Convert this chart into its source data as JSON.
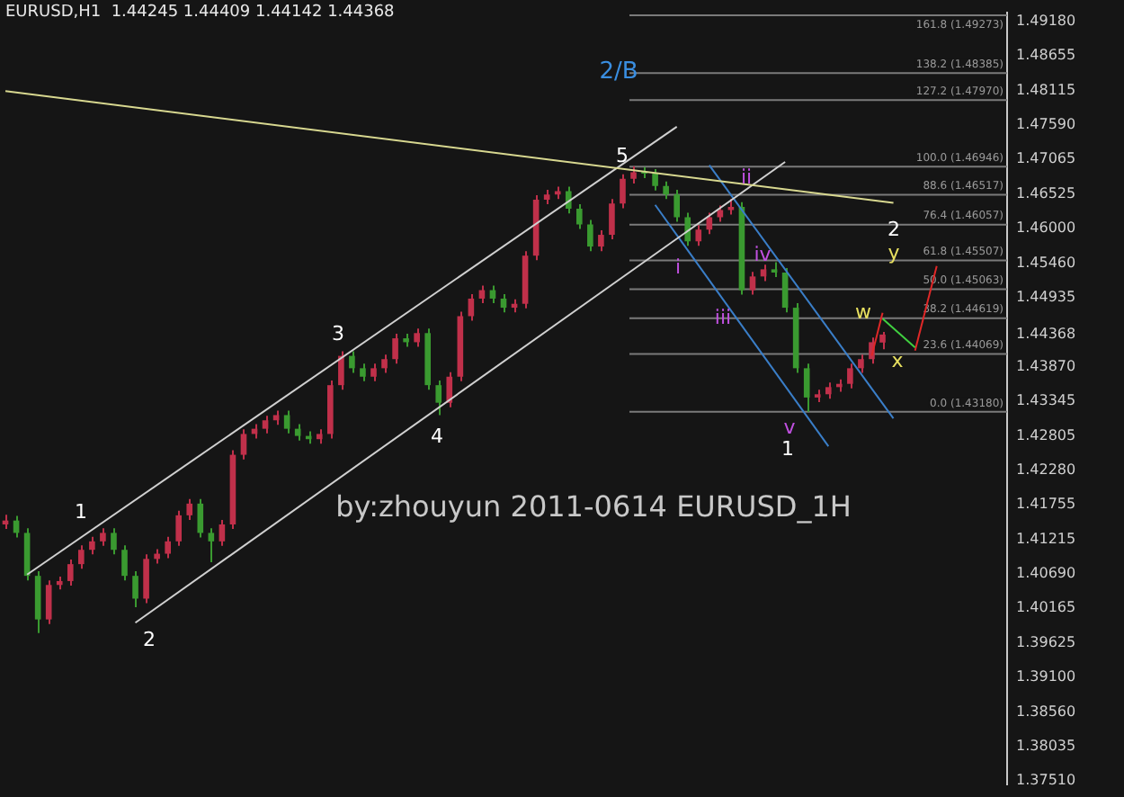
{
  "chart_data": {
    "type": "candlestick",
    "title": "EURUSD,H1  1.44245 1.44409 1.44142 1.44368",
    "categories": [
      null,
      null,
      null,
      null,
      null,
      null,
      null,
      null,
      null,
      null,
      null,
      null,
      null,
      null,
      null,
      null,
      null,
      null,
      null,
      null,
      null,
      null,
      null,
      null,
      null,
      null,
      null,
      null,
      null,
      null,
      null,
      null,
      null,
      null,
      null,
      null,
      null,
      null,
      null,
      null,
      null,
      null,
      null,
      null,
      null,
      null,
      null,
      null,
      null,
      null,
      null,
      null,
      null,
      null,
      null,
      null,
      null,
      null,
      null,
      null,
      null,
      null,
      null,
      null,
      null,
      null,
      null,
      null,
      null,
      null,
      null,
      null,
      null,
      null,
      null,
      null,
      null,
      null,
      null,
      null,
      null,
      null,
      null,
      null,
      null,
      null,
      null,
      null,
      null,
      null,
      null,
      null,
      null
    ],
    "ohlc": [
      [
        1.4145,
        1.416,
        1.4138,
        1.4151
      ],
      [
        1.4151,
        1.4158,
        1.4125,
        1.4132
      ],
      [
        1.4132,
        1.4139,
        1.4059,
        1.4066
      ],
      [
        1.4066,
        1.4073,
        1.3978,
        1.3999
      ],
      [
        1.3999,
        1.4059,
        1.3992,
        1.4052
      ],
      [
        1.4052,
        1.4065,
        1.4045,
        1.4058
      ],
      [
        1.4058,
        1.4091,
        1.4051,
        1.4084
      ],
      [
        1.4084,
        1.4113,
        1.4077,
        1.4106
      ],
      [
        1.4106,
        1.4126,
        1.4099,
        1.4119
      ],
      [
        1.4119,
        1.4139,
        1.4112,
        1.4132
      ],
      [
        1.4132,
        1.4139,
        1.4099,
        1.4106
      ],
      [
        1.4106,
        1.4113,
        1.4059,
        1.4066
      ],
      [
        1.4066,
        1.4073,
        1.4018,
        1.4031
      ],
      [
        1.4031,
        1.4099,
        1.4024,
        1.4092
      ],
      [
        1.4092,
        1.4107,
        1.4085,
        1.41
      ],
      [
        1.41,
        1.4126,
        1.4093,
        1.4119
      ],
      [
        1.4119,
        1.4166,
        1.4112,
        1.4159
      ],
      [
        1.4159,
        1.4184,
        1.4152,
        1.4177
      ],
      [
        1.4177,
        1.4184,
        1.4125,
        1.4132
      ],
      [
        1.4132,
        1.4139,
        1.4087,
        1.4119
      ],
      [
        1.4119,
        1.4152,
        1.4112,
        1.4145
      ],
      [
        1.4145,
        1.4259,
        1.4138,
        1.4252
      ],
      [
        1.4252,
        1.4291,
        1.4245,
        1.4284
      ],
      [
        1.4284,
        1.4299,
        1.4277,
        1.4292
      ],
      [
        1.4292,
        1.4312,
        1.4285,
        1.4305
      ],
      [
        1.4305,
        1.432,
        1.4298,
        1.4313
      ],
      [
        1.4313,
        1.432,
        1.4285,
        1.4292
      ],
      [
        1.4292,
        1.4299,
        1.4274,
        1.4281
      ],
      [
        1.4281,
        1.4288,
        1.4269,
        1.4276
      ],
      [
        1.4276,
        1.4291,
        1.4269,
        1.4284
      ],
      [
        1.4284,
        1.4366,
        1.4277,
        1.4359
      ],
      [
        1.4359,
        1.4411,
        1.4352,
        1.4404
      ],
      [
        1.4404,
        1.4411,
        1.4378,
        1.4385
      ],
      [
        1.4385,
        1.4392,
        1.4365,
        1.4372
      ],
      [
        1.4372,
        1.4392,
        1.4365,
        1.4385
      ],
      [
        1.4385,
        1.4406,
        1.4378,
        1.4399
      ],
      [
        1.4399,
        1.4438,
        1.4392,
        1.4431
      ],
      [
        1.4431,
        1.4438,
        1.4418,
        1.4425
      ],
      [
        1.4425,
        1.4446,
        1.4418,
        1.4439
      ],
      [
        1.4439,
        1.4446,
        1.4352,
        1.4359
      ],
      [
        1.4359,
        1.4366,
        1.4313,
        1.4332
      ],
      [
        1.4332,
        1.4379,
        1.4325,
        1.4372
      ],
      [
        1.4372,
        1.4472,
        1.4365,
        1.4465
      ],
      [
        1.4465,
        1.4499,
        1.4458,
        1.4492
      ],
      [
        1.4492,
        1.4512,
        1.4485,
        1.4505
      ],
      [
        1.4505,
        1.4512,
        1.4485,
        1.4492
      ],
      [
        1.4492,
        1.4499,
        1.4471,
        1.4478
      ],
      [
        1.4478,
        1.4491,
        1.4471,
        1.4484
      ],
      [
        1.4484,
        1.4565,
        1.4477,
        1.4558
      ],
      [
        1.4558,
        1.4651,
        1.4551,
        1.4644
      ],
      [
        1.4644,
        1.4659,
        1.4637,
        1.4652
      ],
      [
        1.4652,
        1.4664,
        1.4645,
        1.4657
      ],
      [
        1.4657,
        1.4664,
        1.4623,
        1.463
      ],
      [
        1.463,
        1.4637,
        1.4599,
        1.4606
      ],
      [
        1.4606,
        1.4613,
        1.4565,
        1.4572
      ],
      [
        1.4572,
        1.4597,
        1.4565,
        1.459
      ],
      [
        1.459,
        1.4645,
        1.4583,
        1.4638
      ],
      [
        1.4638,
        1.4683,
        1.4631,
        1.4676
      ],
      [
        1.4676,
        1.4695,
        1.4669,
        1.4686
      ],
      [
        1.4686,
        1.4694,
        1.4677,
        1.4684
      ],
      [
        1.4684,
        1.4691,
        1.4658,
        1.4665
      ],
      [
        1.4665,
        1.4672,
        1.4645,
        1.4652
      ],
      [
        1.4652,
        1.4659,
        1.461,
        1.4617
      ],
      [
        1.4617,
        1.4624,
        1.4573,
        1.458
      ],
      [
        1.458,
        1.4605,
        1.4573,
        1.4598
      ],
      [
        1.4598,
        1.4624,
        1.4591,
        1.4617
      ],
      [
        1.4617,
        1.4635,
        1.461,
        1.4628
      ],
      [
        1.4628,
        1.4645,
        1.4621,
        1.4633
      ],
      [
        1.4633,
        1.464,
        1.4498,
        1.4505
      ],
      [
        1.4505,
        1.4533,
        1.4498,
        1.4526
      ],
      [
        1.4526,
        1.4544,
        1.4519,
        1.4537
      ],
      [
        1.4537,
        1.4548,
        1.4525,
        1.4532
      ],
      [
        1.4532,
        1.4539,
        1.4471,
        1.4478
      ],
      [
        1.4478,
        1.4485,
        1.4378,
        1.4385
      ],
      [
        1.4385,
        1.4392,
        1.4318,
        1.434
      ],
      [
        1.434,
        1.4352,
        1.4333,
        1.4345
      ],
      [
        1.4345,
        1.4363,
        1.4338,
        1.4356
      ],
      [
        1.4356,
        1.4368,
        1.4349,
        1.4361
      ],
      [
        1.4361,
        1.4392,
        1.4354,
        1.4385
      ],
      [
        1.4385,
        1.4406,
        1.4378,
        1.4399
      ],
      [
        1.4399,
        1.4432,
        1.4392,
        1.4425
      ],
      [
        1.44245,
        1.44409,
        1.44142,
        1.44368
      ],
      null,
      null,
      null,
      null,
      null,
      null,
      null,
      null,
      null,
      null,
      null
    ],
    "colors": [
      "#c0304a",
      "#3a9a30",
      "#3a9a30",
      "#3a9a30",
      "#c0304a",
      "#c0304a",
      "#c0304a",
      "#c0304a",
      "#c0304a",
      "#c0304a",
      "#3a9a30",
      "#3a9a30",
      "#3a9a30",
      "#c0304a",
      "#c0304a",
      "#c0304a",
      "#c0304a",
      "#c0304a",
      "#3a9a30",
      "#3a9a30",
      "#c0304a",
      "#c0304a",
      "#c0304a",
      "#c0304a",
      "#c0304a",
      "#c0304a",
      "#3a9a30",
      "#3a9a30",
      "#3a9a30",
      "#c0304a",
      "#c0304a",
      "#c0304a",
      "#3a9a30",
      "#3a9a30",
      "#c0304a",
      "#c0304a",
      "#c0304a",
      "#3a9a30",
      "#c0304a",
      "#3a9a30",
      "#3a9a30",
      "#c0304a",
      "#c0304a",
      "#c0304a",
      "#c0304a",
      "#3a9a30",
      "#3a9a30",
      "#c0304a",
      "#c0304a",
      "#c0304a",
      "#c0304a",
      "#c0304a",
      "#3a9a30",
      "#3a9a30",
      "#3a9a30",
      "#c0304a",
      "#c0304a",
      "#c0304a",
      "#c0304a",
      "#3a9a30",
      "#3a9a30",
      "#3a9a30",
      "#3a9a30",
      "#3a9a30",
      "#c0304a",
      "#c0304a",
      "#c0304a",
      "#c0304a",
      "#3a9a30",
      "#c0304a",
      "#c0304a",
      "#3a9a30",
      "#3a9a30",
      "#3a9a30",
      "#3a9a30",
      "#c0304a",
      "#c0304a",
      "#c0304a",
      "#c0304a",
      "#c0304a",
      "#c0304a",
      "#c0304a",
      null,
      null,
      null,
      null,
      null,
      null,
      null,
      null,
      null,
      null,
      null
    ],
    "series": [
      {
        "type": "line",
        "color": "#d8d890",
        "values": [
          1.4811,
          null,
          null,
          null,
          null,
          null,
          null,
          null,
          null,
          null,
          null,
          null,
          null,
          null,
          null,
          null,
          null,
          null,
          null,
          null,
          null,
          null,
          null,
          null,
          null,
          null,
          null,
          null,
          null,
          null,
          null,
          null,
          null,
          null,
          null,
          null,
          null,
          null,
          null,
          null,
          null,
          null,
          null,
          null,
          null,
          null,
          null,
          null,
          null,
          null,
          null,
          null,
          null,
          null,
          null,
          null,
          null,
          null,
          null,
          null,
          null,
          null,
          null,
          null,
          null,
          null,
          null,
          null,
          null,
          null,
          null,
          null,
          null,
          null,
          null,
          null,
          null,
          null,
          null,
          null,
          null,
          null,
          1.4639,
          null,
          null,
          null,
          null,
          null,
          null,
          null,
          null,
          null,
          null
        ]
      },
      {
        "type": "line",
        "color": "#d0d0d0",
        "values": [
          null,
          null,
          1.4068,
          null,
          null,
          null,
          null,
          null,
          null,
          null,
          null,
          null,
          null,
          null,
          null,
          null,
          null,
          null,
          null,
          null,
          null,
          null,
          null,
          null,
          null,
          null,
          null,
          null,
          null,
          null,
          null,
          null,
          null,
          null,
          null,
          null,
          null,
          null,
          null,
          null,
          null,
          null,
          null,
          null,
          null,
          null,
          null,
          null,
          null,
          null,
          null,
          null,
          null,
          null,
          null,
          null,
          null,
          null,
          null,
          null,
          null,
          null,
          1.4756,
          null,
          null,
          null,
          null,
          null,
          null,
          null,
          null,
          null,
          null,
          null,
          null,
          null,
          null,
          null,
          null,
          null,
          null,
          null,
          null,
          null,
          null,
          null,
          null,
          null,
          null,
          null,
          null,
          null,
          null
        ]
      },
      {
        "type": "line",
        "color": "#d0d0d0",
        "values": [
          null,
          null,
          null,
          null,
          null,
          null,
          null,
          null,
          null,
          null,
          null,
          null,
          1.3994,
          null,
          null,
          null,
          null,
          null,
          null,
          null,
          null,
          null,
          null,
          null,
          null,
          null,
          null,
          null,
          null,
          null,
          null,
          null,
          null,
          null,
          null,
          null,
          null,
          null,
          null,
          null,
          null,
          null,
          null,
          null,
          null,
          null,
          null,
          null,
          null,
          null,
          null,
          null,
          null,
          null,
          null,
          null,
          null,
          null,
          null,
          null,
          null,
          null,
          null,
          null,
          null,
          null,
          null,
          null,
          null,
          null,
          null,
          null,
          1.4702,
          null,
          null,
          null,
          null,
          null,
          null,
          null,
          null,
          null,
          null,
          null,
          null,
          null,
          null,
          null,
          null,
          null,
          null,
          null,
          null
        ]
      },
      {
        "type": "line",
        "color": "#3a7ec8",
        "values": [
          null,
          null,
          null,
          null,
          null,
          null,
          null,
          null,
          null,
          null,
          null,
          null,
          null,
          null,
          null,
          null,
          null,
          null,
          null,
          null,
          null,
          null,
          null,
          null,
          null,
          null,
          null,
          null,
          null,
          null,
          null,
          null,
          null,
          null,
          null,
          null,
          null,
          null,
          null,
          null,
          null,
          null,
          null,
          null,
          null,
          null,
          null,
          null,
          null,
          null,
          null,
          null,
          null,
          null,
          null,
          null,
          null,
          null,
          null,
          null,
          1.4636,
          null,
          null,
          null,
          null,
          null,
          null,
          null,
          null,
          null,
          null,
          null,
          null,
          null,
          null,
          null,
          1.4265,
          null,
          null,
          null,
          null,
          null,
          null,
          null,
          null,
          null,
          null,
          null,
          null,
          null,
          null,
          null,
          null
        ]
      },
      {
        "type": "line",
        "color": "#3a7ec8",
        "values": [
          null,
          null,
          null,
          null,
          null,
          null,
          null,
          null,
          null,
          null,
          null,
          null,
          null,
          null,
          null,
          null,
          null,
          null,
          null,
          null,
          null,
          null,
          null,
          null,
          null,
          null,
          null,
          null,
          null,
          null,
          null,
          null,
          null,
          null,
          null,
          null,
          null,
          null,
          null,
          null,
          null,
          null,
          null,
          null,
          null,
          null,
          null,
          null,
          null,
          null,
          null,
          null,
          null,
          null,
          null,
          null,
          null,
          null,
          null,
          null,
          null,
          null,
          null,
          null,
          null,
          1.4697,
          null,
          null,
          null,
          null,
          null,
          null,
          null,
          null,
          null,
          null,
          null,
          null,
          null,
          null,
          null,
          null,
          1.4308,
          null,
          null,
          null,
          null,
          null,
          null,
          null,
          null,
          null,
          null
        ]
      },
      {
        "type": "line",
        "color": "#e02828",
        "values": [
          null,
          null,
          null,
          null,
          null,
          null,
          null,
          null,
          null,
          null,
          null,
          null,
          null,
          null,
          null,
          null,
          null,
          null,
          null,
          null,
          null,
          null,
          null,
          null,
          null,
          null,
          null,
          null,
          null,
          null,
          null,
          null,
          null,
          null,
          null,
          null,
          null,
          null,
          null,
          null,
          null,
          null,
          null,
          null,
          null,
          null,
          null,
          null,
          null,
          null,
          null,
          null,
          null,
          null,
          null,
          null,
          null,
          null,
          null,
          null,
          null,
          null,
          null,
          null,
          null,
          null,
          null,
          null,
          null,
          null,
          null,
          null,
          null,
          null,
          null,
          null,
          null,
          null,
          null,
          null,
          1.4404,
          1.447,
          null,
          null,
          null,
          null,
          null,
          null,
          null,
          null,
          null,
          null,
          null
        ]
      },
      {
        "type": "line",
        "color": "#40d040",
        "values": [
          null,
          null,
          null,
          null,
          null,
          null,
          null,
          null,
          null,
          null,
          null,
          null,
          null,
          null,
          null,
          null,
          null,
          null,
          null,
          null,
          null,
          null,
          null,
          null,
          null,
          null,
          null,
          null,
          null,
          null,
          null,
          null,
          null,
          null,
          null,
          null,
          null,
          null,
          null,
          null,
          null,
          null,
          null,
          null,
          null,
          null,
          null,
          null,
          null,
          null,
          null,
          null,
          null,
          null,
          null,
          null,
          null,
          null,
          null,
          null,
          null,
          null,
          null,
          null,
          null,
          null,
          null,
          null,
          null,
          null,
          null,
          null,
          null,
          null,
          null,
          null,
          null,
          null,
          null,
          null,
          null,
          1.4461,
          null,
          null,
          1.4417,
          null,
          null,
          null,
          null,
          null,
          null,
          null,
          null
        ]
      },
      {
        "type": "line",
        "color": "#e02828",
        "values": [
          null,
          null,
          null,
          null,
          null,
          null,
          null,
          null,
          null,
          null,
          null,
          null,
          null,
          null,
          null,
          null,
          null,
          null,
          null,
          null,
          null,
          null,
          null,
          null,
          null,
          null,
          null,
          null,
          null,
          null,
          null,
          null,
          null,
          null,
          null,
          null,
          null,
          null,
          null,
          null,
          null,
          null,
          null,
          null,
          null,
          null,
          null,
          null,
          null,
          null,
          null,
          null,
          null,
          null,
          null,
          null,
          null,
          null,
          null,
          null,
          null,
          null,
          null,
          null,
          null,
          null,
          null,
          null,
          null,
          null,
          null,
          null,
          null,
          null,
          null,
          null,
          null,
          null,
          null,
          null,
          null,
          null,
          null,
          null,
          1.4412,
          null,
          1.4542,
          null,
          null,
          null,
          null,
          null,
          null
        ]
      }
    ],
    "ylim": [
      1.3745,
      1.4932
    ],
    "yticks": [
      {
        "value": 1.4918,
        "label": "1.49180"
      },
      1.48655,
      1.48115,
      {
        "value": 1.4759,
        "label": "1.47590"
      },
      1.47065,
      1.46525,
      {
        "value": 1.46,
        "label": "1.46000"
      },
      {
        "value": 1.4546,
        "label": "1.45460"
      },
      1.44935,
      1.44368,
      {
        "value": 1.4387,
        "label": "1.43870"
      },
      1.43345,
      1.42805,
      {
        "value": 1.4228,
        "label": "1.42280"
      },
      1.41755,
      1.41215,
      {
        "value": 1.4069,
        "label": "1.40690"
      },
      1.40165,
      1.39625,
      {
        "value": 1.391,
        "label": "1.39100"
      },
      {
        "value": 1.3856,
        "label": "1.38560"
      },
      1.38035,
      {
        "value": 1.3751,
        "label": "1.37510"
      }
    ],
    "tick_labels": "y",
    "ref_lines": [
      {
        "axis": "y",
        "value": 1.4318,
        "label": "0.0 (1.43180)",
        "color": "#7a7a7a"
      },
      {
        "axis": "y",
        "value": 1.44069,
        "label": "23.6 (1.44069)",
        "color": "#7a7a7a"
      },
      {
        "axis": "y",
        "value": 1.44619,
        "label": "38.2 (1.44619)",
        "color": "#7a7a7a"
      },
      {
        "axis": "y",
        "value": 1.45063,
        "label": "50.0 (1.45063)",
        "color": "#7a7a7a"
      },
      {
        "axis": "y",
        "value": 1.45507,
        "label": "61.8 (1.45507)",
        "color": "#7a7a7a"
      },
      {
        "axis": "y",
        "value": 1.46057,
        "label": "76.4 (1.46057)",
        "color": "#7a7a7a"
      },
      {
        "axis": "y",
        "value": 1.46517,
        "label": "88.6 (1.46517)",
        "color": "#7a7a7a"
      },
      {
        "axis": "y",
        "value": 1.46946,
        "label": "100.0 (1.46946)",
        "color": "#7a7a7a"
      },
      {
        "axis": "y",
        "value": 1.4797,
        "label": "127.2 (1.47970)",
        "color": "#7a7a7a"
      },
      {
        "axis": "y",
        "value": 1.48385,
        "label": "138.2 (1.48385)",
        "color": "#7a7a7a"
      },
      {
        "axis": "y",
        "value": 1.49273,
        "label": "161.8 (1.49273)",
        "color": "#7a7a7a"
      }
    ],
    "annotations": [
      "1",
      "2",
      "3",
      "4",
      "5",
      "2/B",
      "i",
      "ii",
      "iii",
      "iv",
      "v",
      "1",
      "2",
      "w",
      "x",
      "y",
      "by:zhouyun 2011-0614 EURUSD_1H"
    ]
  }
}
